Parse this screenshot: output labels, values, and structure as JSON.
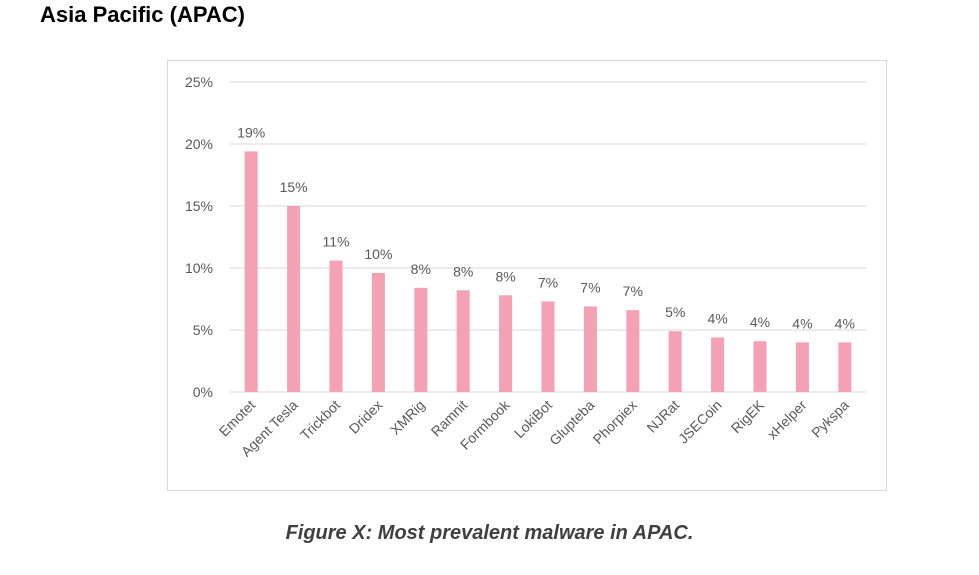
{
  "heading": "Asia Pacific (APAC)",
  "caption": "Figure X: Most prevalent malware in APAC.",
  "colors": {
    "bar": "#f4a0b5",
    "grid": "#d9d9d9",
    "tick_text": "#595959",
    "label_text": "#595959"
  },
  "chart_data": {
    "type": "bar",
    "categories": [
      "Emotet",
      "Agent Tesla",
      "Trickbot",
      "Dridex",
      "XMRig",
      "Ramnit",
      "Formbook",
      "LokiBot",
      "Glupteba",
      "Phorpiex",
      "NJRat",
      "JSECoin",
      "RigEK",
      "xHelper",
      "Pykspa"
    ],
    "values": [
      19.4,
      15.0,
      10.6,
      9.6,
      8.4,
      8.2,
      7.8,
      7.3,
      6.9,
      6.6,
      4.9,
      4.4,
      4.1,
      4.0,
      4.0
    ],
    "data_labels": [
      "19%",
      "15%",
      "11%",
      "10%",
      "8%",
      "8%",
      "8%",
      "7%",
      "7%",
      "7%",
      "5%",
      "4%",
      "4%",
      "4%",
      "4%"
    ],
    "ylim": [
      0,
      25
    ],
    "yticks": [
      0,
      5,
      10,
      15,
      20,
      25
    ],
    "ytick_labels": [
      "0%",
      "5%",
      "10%",
      "15%",
      "20%",
      "25%"
    ],
    "grid": true,
    "legend": "none"
  }
}
